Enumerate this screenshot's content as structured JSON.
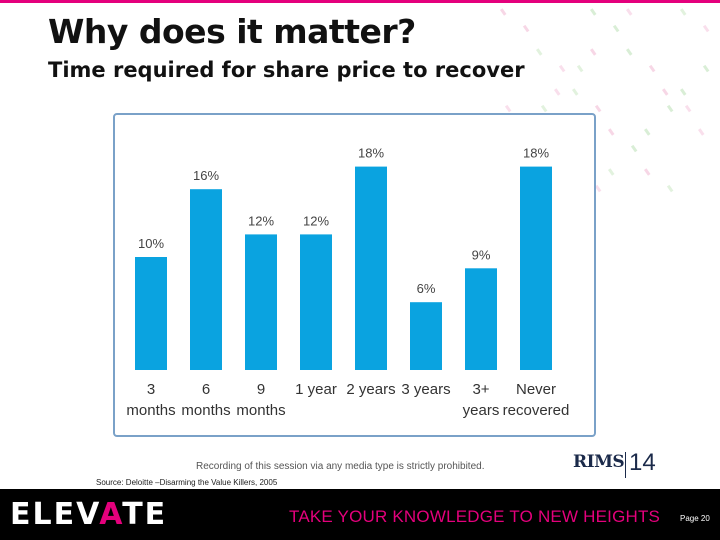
{
  "slide": {
    "title": "Why does it matter?",
    "subtitle": "Time required for share price to recover",
    "notice": "Recording of this session via any media type is strictly prohibited.",
    "source": "Source: Deloitte –Disarming the Value Killers, 2005",
    "page_label": "Page 20"
  },
  "logo": {
    "name": "RIMS",
    "year": "14"
  },
  "footer": {
    "brand_pre": "ELEV",
    "brand_accent": "A",
    "brand_post": "TE",
    "tagline": "TAKE YOUR KNOWLEDGE TO NEW HEIGHTS"
  },
  "colors": {
    "bar": "#0aa3e0",
    "accent": "#e4007c",
    "footer_bg": "#000000"
  },
  "chart_data": {
    "type": "bar",
    "categories": [
      [
        "3",
        "months"
      ],
      [
        "6",
        "months"
      ],
      [
        "9",
        "months"
      ],
      [
        "1 year"
      ],
      [
        "2 years"
      ],
      [
        "3 years"
      ],
      [
        "3+",
        "years"
      ],
      [
        "Never",
        "recovered"
      ]
    ],
    "values": [
      10,
      16,
      12,
      12,
      18,
      6,
      9,
      18
    ],
    "data_labels": [
      "10%",
      "16%",
      "12%",
      "12%",
      "18%",
      "6%",
      "9%",
      "18%"
    ],
    "ylim": [
      0,
      20
    ],
    "grid": false,
    "legend": "none"
  }
}
